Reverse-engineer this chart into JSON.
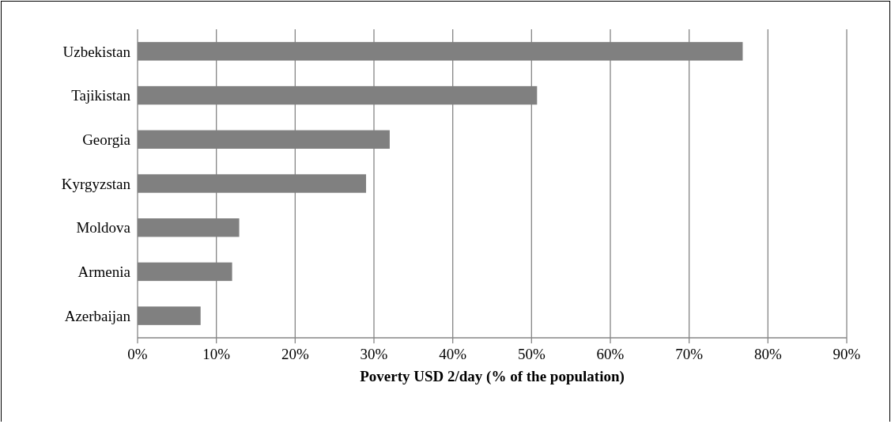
{
  "chart_data": {
    "type": "bar",
    "orientation": "horizontal",
    "xlabel": "Poverty USD 2/day (% of the population)",
    "categories": [
      "Uzbekistan",
      "Tajikistan",
      "Georgia",
      "Kyrgyzstan",
      "Moldova",
      "Armenia",
      "Azerbaijan"
    ],
    "values": [
      76.8,
      50.7,
      32,
      29,
      12.9,
      12,
      8
    ],
    "color": "#808080",
    "xlim": [
      0,
      90
    ],
    "xticks": [
      {
        "value": 0,
        "label": "0%"
      },
      {
        "value": 10,
        "label": "10%"
      },
      {
        "value": 20,
        "label": "20%"
      },
      {
        "value": 30,
        "label": "30%"
      },
      {
        "value": 40,
        "label": "40%"
      },
      {
        "value": 50,
        "label": "50%"
      },
      {
        "value": 60,
        "label": "60%"
      },
      {
        "value": 70,
        "label": "70%"
      },
      {
        "value": 80,
        "label": "80%"
      },
      {
        "value": 90,
        "label": "90%"
      }
    ],
    "grid": "x"
  }
}
